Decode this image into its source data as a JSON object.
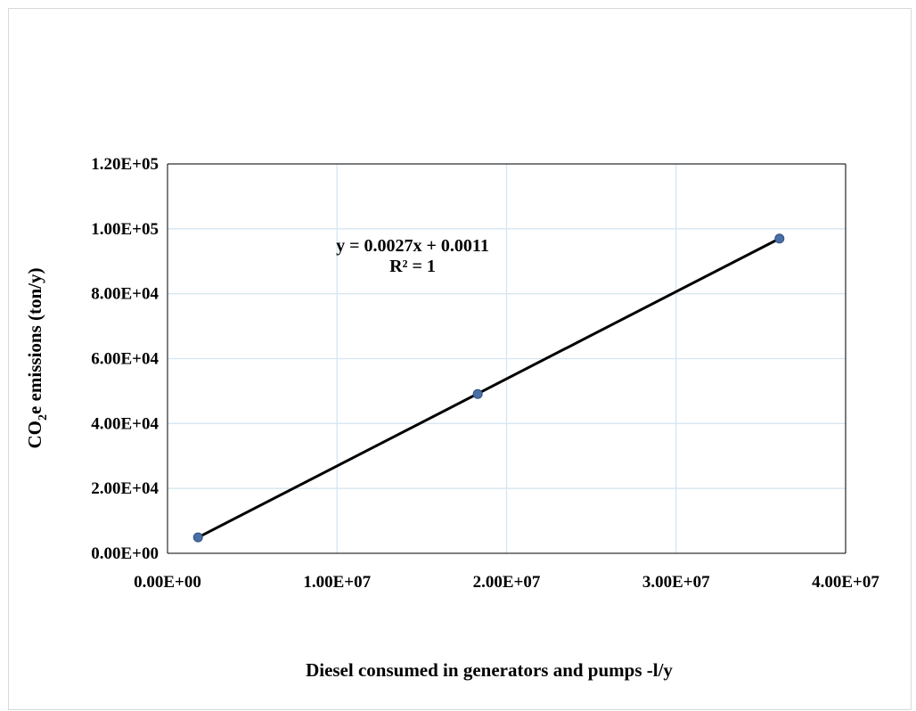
{
  "chart_data": {
    "type": "scatter",
    "title": "",
    "xlabel": "Diesel consumed in generators and pumps -l/y",
    "ylabel_main": "CO",
    "ylabel_sub": "2",
    "ylabel_rest": "e emissions (ton/y)",
    "xlim": [
      0,
      40000000
    ],
    "ylim": [
      0,
      120000
    ],
    "x_ticks": [
      0,
      10000000,
      20000000,
      30000000,
      40000000
    ],
    "x_tick_labels": [
      "0.00E+00",
      "1.00E+07",
      "2.00E+07",
      "3.00E+07",
      "4.00E+07"
    ],
    "y_ticks": [
      0,
      20000,
      40000,
      60000,
      80000,
      100000,
      120000
    ],
    "y_tick_labels": [
      "0.00E+00",
      "2.00E+04",
      "4.00E+04",
      "6.00E+04",
      "8.00E+04",
      "1.00E+05",
      "1.20E+05"
    ],
    "grid": true,
    "series": [
      {
        "x": [
          1800000,
          18300000,
          36100000
        ],
        "y": [
          4900,
          49100,
          97000
        ]
      }
    ],
    "trendline": {
      "type": "linear",
      "slope": 0.0027,
      "intercept": 0.0011,
      "equation": "y = 0.0027x + 0.0011",
      "r_squared": "R² = 1"
    },
    "colors": {
      "point": "#4a6fa5",
      "point_edge": "#2f4f7f",
      "line": "#000000",
      "grid": "#d6e6f2",
      "axis": "#000000"
    }
  }
}
